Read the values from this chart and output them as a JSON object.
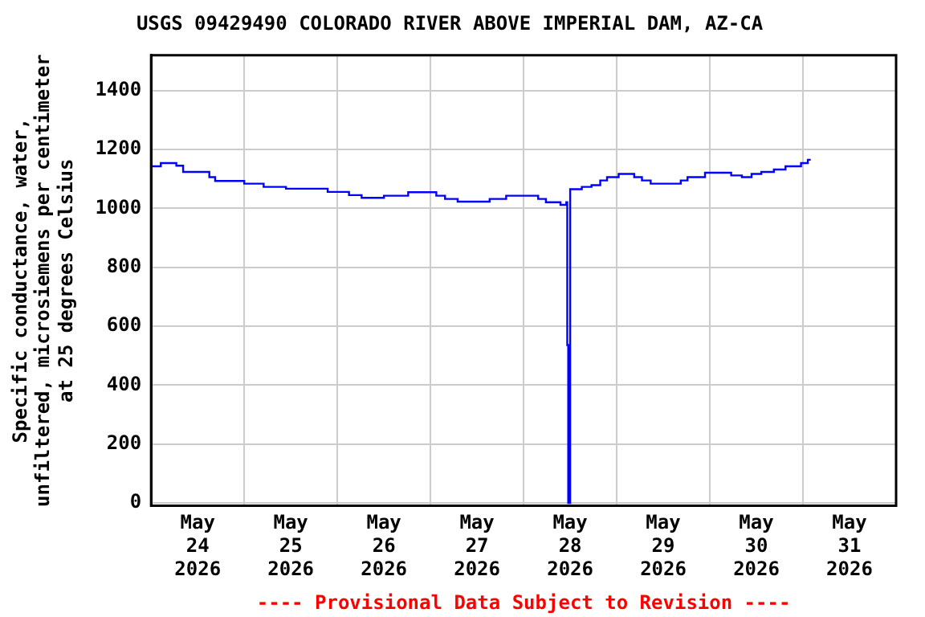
{
  "chart_data": {
    "type": "step",
    "title": "USGS 09429490 COLORADO RIVER ABOVE IMPERIAL DAM, AZ-CA",
    "ylabel": "Specific conductance, water,\nunfiltered, microsiemens per centimeter\nat 25 degrees Celsius",
    "annotations": [
      "---- Provisional Data Subject to Revision ----"
    ],
    "x": [
      "2026-05-24T00:00",
      "2026-05-24T02:30",
      "2026-05-24T06:30",
      "2026-05-24T08:15",
      "2026-05-24T15:00",
      "2026-05-24T16:30",
      "2026-05-25T00:00",
      "2026-05-25T05:00",
      "2026-05-25T10:45",
      "2026-05-25T21:30",
      "2026-05-26T03:00",
      "2026-05-26T06:15",
      "2026-05-26T12:00",
      "2026-05-26T18:15",
      "2026-05-27T01:30",
      "2026-05-27T03:45",
      "2026-05-27T07:00",
      "2026-05-27T15:15",
      "2026-05-27T19:30",
      "2026-05-28T03:45",
      "2026-05-28T05:45",
      "2026-05-28T09:30",
      "2026-05-28T11:00",
      "2026-05-28T11:15",
      "2026-05-28T11:30",
      "2026-05-28T12:00",
      "2026-05-28T15:00",
      "2026-05-28T17:30",
      "2026-05-28T19:45",
      "2026-05-28T21:30",
      "2026-05-29T00:30",
      "2026-05-29T04:30",
      "2026-05-29T06:30",
      "2026-05-29T08:45",
      "2026-05-29T16:30",
      "2026-05-29T18:15",
      "2026-05-29T22:45",
      "2026-05-30T05:30",
      "2026-05-30T08:15",
      "2026-05-30T10:45",
      "2026-05-30T13:15",
      "2026-05-30T16:30",
      "2026-05-30T19:30",
      "2026-05-30T23:30",
      "2026-05-31T01:15",
      "2026-05-31T02:00"
    ],
    "series": [
      {
        "color": "#0000ff",
        "values": [
          1143,
          1154,
          1145,
          1124,
          1106,
          1093,
          1084,
          1073,
          1067,
          1056,
          1045,
          1036,
          1043,
          1055,
          1043,
          1032,
          1023,
          1032,
          1043,
          1032,
          1021,
          1012,
          1021,
          536,
          0,
          1065,
          1073,
          1079,
          1095,
          1106,
          1117,
          1106,
          1095,
          1084,
          1095,
          1106,
          1121,
          1112,
          1106,
          1117,
          1124,
          1132,
          1143,
          1154,
          1165,
          1165
        ]
      }
    ],
    "xlim": [
      "2026-05-24T00:00",
      "2026-06-01T00:00"
    ],
    "xticks": [
      {
        "value": "2026-05-24T00:00",
        "label": null
      },
      {
        "value": "2026-05-24T12:00",
        "label": "May\n24\n2026"
      },
      {
        "value": "2026-05-25T00:00",
        "label": null
      },
      {
        "value": "2026-05-25T12:00",
        "label": "May\n25\n2026"
      },
      {
        "value": "2026-05-26T00:00",
        "label": null
      },
      {
        "value": "2026-05-26T12:00",
        "label": "May\n26\n2026"
      },
      {
        "value": "2026-05-27T00:00",
        "label": null
      },
      {
        "value": "2026-05-27T12:00",
        "label": "May\n27\n2026"
      },
      {
        "value": "2026-05-28T00:00",
        "label": null
      },
      {
        "value": "2026-05-28T12:00",
        "label": "May\n28\n2026"
      },
      {
        "value": "2026-05-29T00:00",
        "label": null
      },
      {
        "value": "2026-05-29T12:00",
        "label": "May\n29\n2026"
      },
      {
        "value": "2026-05-30T00:00",
        "label": null
      },
      {
        "value": "2026-05-30T12:00",
        "label": "May\n30\n2026"
      },
      {
        "value": "2026-05-31T00:00",
        "label": null
      },
      {
        "value": "2026-05-31T12:00",
        "label": "May\n31\n2026"
      },
      {
        "value": "2026-06-01T00:00",
        "label": null
      }
    ],
    "ylim": [
      -10,
      1520
    ],
    "yticks": [
      0,
      200,
      400,
      600,
      800,
      1000,
      1200,
      1400
    ],
    "grid": true,
    "legend": false
  }
}
